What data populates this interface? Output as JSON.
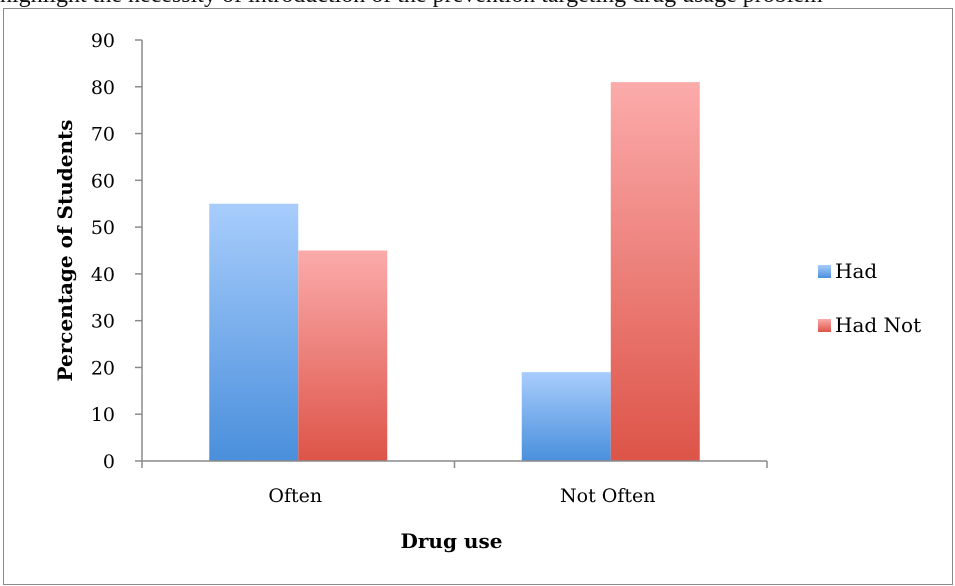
{
  "top_text": "highlight the necessity of introduction of the prevention targeting drug usage problem",
  "chart_data": {
    "type": "bar",
    "categories": [
      "Often",
      "Not Often"
    ],
    "series": [
      {
        "name": "Had",
        "values": [
          55,
          19
        ],
        "color_top": "#a8cdfc",
        "color_bottom": "#4a8fdc"
      },
      {
        "name": "Had Not",
        "values": [
          45,
          81
        ],
        "color_top": "#fbabab",
        "color_bottom": "#dd5448"
      }
    ],
    "title": "",
    "xlabel": "Drug use",
    "ylabel": "Percentage of Students",
    "ylim": [
      0,
      90
    ],
    "yticks": [
      "0",
      "10",
      "20",
      "30",
      "40",
      "50",
      "60",
      "70",
      "80",
      "90"
    ],
    "grid": false,
    "legend_position": "right"
  }
}
